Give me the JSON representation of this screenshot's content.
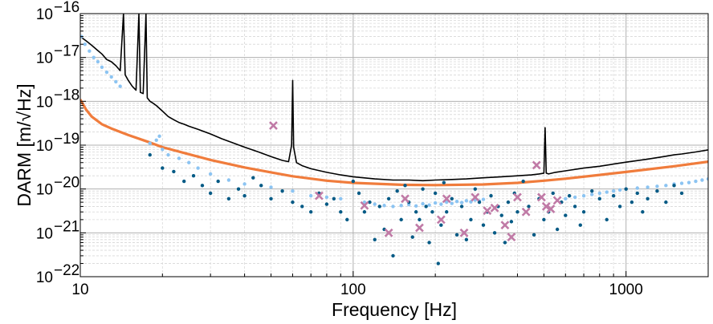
{
  "chart_data": {
    "type": "line",
    "xlabel": "Frequency [Hz]",
    "ylabel": "DARM [m/√Hz]",
    "xscale": "log",
    "yscale": "log",
    "xlim": [
      10,
      2000
    ],
    "ylim": [
      1e-22,
      1e-16
    ],
    "grid": true,
    "legend": "none",
    "x_ticks": [
      {
        "value": 10,
        "label": "10"
      },
      {
        "value": 100,
        "label": "100"
      },
      {
        "value": 1000,
        "label": "1000"
      }
    ],
    "y_ticks": [
      {
        "value": 1e-22,
        "base": "10",
        "exp": "−22"
      },
      {
        "value": 1e-21,
        "base": "10",
        "exp": "−21"
      },
      {
        "value": 1e-20,
        "base": "10",
        "exp": "−20"
      },
      {
        "value": 1e-19,
        "base": "10",
        "exp": "−19"
      },
      {
        "value": 1e-18,
        "base": "10",
        "exp": "−18"
      },
      {
        "value": 1e-17,
        "base": "10",
        "exp": "−17"
      },
      {
        "value": 1e-16,
        "base": "10",
        "exp": "−16"
      }
    ],
    "colors": {
      "total_noise": "#000000",
      "model": "#f07c3c",
      "dark_points": "#035a85",
      "light_points": "#8cc4f2",
      "crosses": "#c07aa6",
      "grid_major": "#b0b0b0",
      "grid_minor": "#d8d8d8"
    },
    "series": [
      {
        "kind": "line",
        "color_key": "total_noise",
        "width": 1.6,
        "x": [
          10,
          10.5,
          11,
          11.5,
          12,
          12.5,
          13,
          13.5,
          14,
          14.4,
          14.6,
          15,
          15.5,
          16,
          16.4,
          16.6,
          17,
          17.4,
          17.6,
          18,
          18.5,
          19,
          20,
          21,
          22,
          23,
          24,
          25,
          27,
          30,
          33,
          36,
          40,
          45,
          50,
          55,
          58,
          59.5,
          60,
          60.5,
          62,
          65,
          70,
          80,
          90,
          100,
          120,
          140,
          160,
          180,
          200,
          230,
          260,
          300,
          350,
          400,
          450,
          480,
          500,
          505,
          510,
          520,
          550,
          600,
          700,
          800,
          900,
          1000,
          1200,
          1400,
          1500,
          1600,
          1800,
          2000
        ],
        "y": [
          3e-17,
          2.4e-17,
          1.9e-17,
          1.5e-17,
          1.2e-17,
          9e-18,
          8e-18,
          6.5e-18,
          5e-18,
          1e-16,
          4e-18,
          3e-18,
          2.2e-18,
          1.8e-18,
          1e-16,
          1.6e-18,
          1.5e-18,
          1e-16,
          1.2e-18,
          1e-18,
          9e-19,
          8e-19,
          6e-19,
          4.5e-19,
          3.8e-19,
          3.3e-19,
          3e-19,
          2.7e-19,
          2.3e-19,
          1.8e-19,
          1.4e-19,
          1.15e-19,
          9e-20,
          7e-20,
          5.5e-20,
          4.5e-20,
          4.2e-20,
          1e-19,
          3e-18,
          9e-20,
          4e-20,
          3.4e-20,
          2.9e-20,
          2.4e-20,
          2.1e-20,
          1.9e-20,
          1.7e-20,
          1.6e-20,
          1.6e-20,
          1.55e-20,
          1.6e-20,
          1.65e-20,
          1.7e-20,
          1.8e-20,
          1.9e-20,
          2e-20,
          2.1e-20,
          2.2e-20,
          2.3e-20,
          2.5e-19,
          2.3e-20,
          2.2e-20,
          2.4e-20,
          2.6e-20,
          3e-20,
          3.3e-20,
          3.7e-20,
          4.1e-20,
          4.8e-20,
          5.6e-20,
          6e-20,
          6.3e-20,
          7e-20,
          7.8e-20
        ]
      },
      {
        "kind": "line",
        "color_key": "model",
        "width": 3.2,
        "x": [
          10,
          10.5,
          11,
          12,
          13,
          15,
          18,
          20,
          25,
          30,
          40,
          50,
          60,
          80,
          100,
          150,
          200,
          300,
          400,
          500,
          600,
          800,
          1000,
          1500,
          2000
        ],
        "y": [
          1.1e-18,
          6.5e-19,
          4.5e-19,
          3e-19,
          2.4e-19,
          1.7e-19,
          1.15e-19,
          9e-20,
          6.2e-20,
          4.6e-20,
          3.1e-20,
          2.4e-20,
          1.95e-20,
          1.55e-20,
          1.38e-20,
          1.25e-20,
          1.23e-20,
          1.27e-20,
          1.38e-20,
          1.55e-20,
          1.72e-20,
          2.1e-20,
          2.45e-20,
          3.3e-20,
          4.2e-20
        ]
      },
      {
        "kind": "scatter",
        "color_key": "light_points",
        "x": [
          10.1,
          10.4,
          10.8,
          11.2,
          11.6,
          12,
          12.5,
          13,
          13.5,
          14,
          18,
          19,
          19.5,
          20,
          21,
          23,
          25,
          27,
          30,
          35,
          40,
          50,
          60,
          70,
          80,
          90,
          110,
          120,
          130,
          140,
          150,
          160,
          170,
          180,
          190,
          200,
          210,
          220,
          230,
          240,
          250,
          260,
          270,
          280,
          290,
          300,
          600,
          650,
          700,
          750,
          800,
          850,
          900,
          950,
          1000,
          1100,
          1200,
          1300,
          1400,
          1500,
          1600,
          1700,
          1800,
          1900,
          2000
        ],
        "y": [
          3e-17,
          2e-17,
          1.4e-17,
          1e-17,
          8e-18,
          6e-18,
          4.6e-18,
          3.6e-18,
          2.8e-18,
          2.2e-18,
          1.1e-19,
          1.3e-19,
          1.6e-19,
          8e-20,
          6e-20,
          5e-20,
          4e-20,
          3e-20,
          2.2e-20,
          1.6e-20,
          1.3e-20,
          1.1e-20,
          9e-21,
          7e-21,
          6.5e-21,
          6e-21,
          5e-21,
          4.5e-21,
          4.2e-21,
          4e-21,
          4.2e-21,
          4.4e-21,
          4.1e-21,
          4.6e-21,
          4.3e-21,
          4.8e-21,
          4.5e-21,
          5e-21,
          4.7e-21,
          5.2e-21,
          4.9e-21,
          5.4e-21,
          5.1e-21,
          5.6e-21,
          5.3e-21,
          5.8e-21,
          6e-21,
          6.5e-21,
          7e-21,
          7.5e-21,
          8e-21,
          8.5e-21,
          9e-21,
          9.5e-21,
          1e-20,
          1.05e-20,
          1.1e-20,
          1.15e-20,
          1.2e-20,
          1.3e-20,
          1.35e-20,
          1.4e-20,
          1.5e-20,
          1.6e-20,
          1.7e-20
        ]
      },
      {
        "kind": "scatter",
        "color_key": "dark_points",
        "x": [
          18,
          20,
          22,
          24,
          26,
          28,
          30,
          32,
          35,
          38,
          40,
          43,
          46,
          50,
          55,
          60,
          65,
          70,
          75,
          80,
          85,
          90,
          95,
          100,
          105,
          110,
          115,
          120,
          125,
          130,
          135,
          140,
          145,
          150,
          155,
          160,
          165,
          170,
          175,
          180,
          185,
          190,
          195,
          200,
          205,
          210,
          215,
          220,
          230,
          240,
          250,
          260,
          270,
          280,
          290,
          300,
          310,
          320,
          330,
          340,
          350,
          360,
          370,
          380,
          390,
          400,
          420,
          440,
          460,
          480,
          500,
          520,
          540,
          560,
          580,
          600,
          620,
          650,
          680,
          700,
          750,
          800,
          850,
          900,
          950,
          1000,
          1050,
          1100,
          1150,
          1200,
          1300,
          1400,
          1500,
          1600
        ],
        "y": [
          6e-20,
          3e-20,
          2.5e-20,
          1.5e-20,
          2e-20,
          1.2e-20,
          8e-21,
          1.5e-20,
          6e-21,
          1e-20,
          7e-21,
          1.8e-20,
          1.2e-20,
          6e-21,
          9e-21,
          5e-21,
          4e-21,
          3e-21,
          8e-21,
          4.5e-21,
          6e-21,
          3e-21,
          2e-21,
          1.5e-20,
          8e-21,
          3e-21,
          5e-21,
          7e-22,
          4e-21,
          1.2e-21,
          6e-21,
          3e-22,
          9e-21,
          2e-21,
          1.2e-20,
          5e-21,
          8e-22,
          3e-21,
          2e-21,
          1e-20,
          4e-21,
          6e-22,
          3e-21,
          8e-21,
          2e-22,
          1.5e-21,
          1.4e-20,
          3e-21,
          6e-21,
          9e-22,
          4e-21,
          7e-22,
          2e-21,
          1e-20,
          5e-21,
          1.5e-21,
          3e-21,
          7e-21,
          1e-21,
          4e-21,
          2.5e-21,
          6e-22,
          5e-21,
          1.8e-21,
          8e-21,
          3e-21,
          1.5e-20,
          4e-21,
          9e-22,
          6e-21,
          2e-21,
          3e-21,
          8e-21,
          1.2e-21,
          5e-21,
          2.5e-21,
          7e-21,
          4e-21,
          1.5e-21,
          3e-21,
          9e-21,
          6e-21,
          2e-21,
          7e-21,
          4e-21,
          1e-20,
          5e-21,
          8e-21,
          3e-21,
          6e-21,
          9e-21,
          5e-21,
          1.2e-20,
          8e-21
        ]
      },
      {
        "kind": "cross",
        "color_key": "crosses",
        "x": [
          51,
          75,
          110,
          135,
          155,
          175,
          210,
          220,
          255,
          280,
          310,
          330,
          360,
          380,
          400,
          430,
          470,
          490,
          510,
          530,
          560
        ],
        "y": [
          2.8e-19,
          7e-21,
          4.2e-21,
          1e-21,
          6e-21,
          1.3e-21,
          2e-21,
          6e-21,
          1e-21,
          6.5e-21,
          3.2e-21,
          3.7e-21,
          1.5e-21,
          8e-22,
          6.5e-21,
          3e-21,
          3.5e-20,
          6.5e-21,
          4e-21,
          3.5e-21,
          5.5e-21
        ]
      }
    ]
  }
}
